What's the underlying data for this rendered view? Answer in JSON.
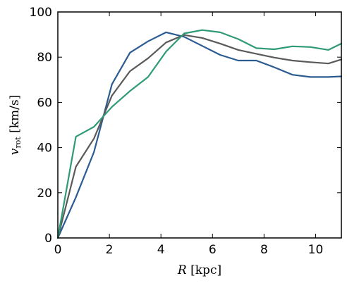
{
  "chart_data": {
    "type": "line",
    "xlabel": "R [kpc]",
    "xlabel_italic": "R",
    "xlabel_rest": " [kpc]",
    "ylabel": "v_rot [km/s]",
    "ylabel_main": "v",
    "ylabel_sub": "rot",
    "ylabel_unit": " [km/s]",
    "xlim": [
      0,
      11
    ],
    "ylim": [
      0,
      100
    ],
    "xticks": [
      0,
      2,
      4,
      6,
      8,
      10
    ],
    "yticks": [
      0,
      20,
      40,
      60,
      80,
      100
    ],
    "grid": false,
    "series": [
      {
        "color": "#2b5b91",
        "x": [
          0,
          0.7,
          1.4,
          2.1,
          2.8,
          3.5,
          4.2,
          4.9,
          5.6,
          6.3,
          7.0,
          7.7,
          8.4,
          9.1,
          9.8,
          10.5,
          11.0
        ],
        "y": [
          0,
          18,
          38,
          68,
          82,
          87,
          91,
          89,
          85,
          81,
          78.5,
          78.5,
          75.5,
          72.2,
          71.2,
          71.2,
          71.5
        ]
      },
      {
        "color": "#5a5a5a",
        "x": [
          0,
          0.7,
          1.4,
          2.1,
          2.8,
          3.5,
          4.2,
          4.9,
          5.6,
          6.3,
          7.0,
          7.7,
          8.4,
          9.1,
          9.8,
          10.5,
          11.0
        ],
        "y": [
          0,
          31.5,
          44,
          63,
          73.8,
          79.5,
          86.5,
          89.8,
          88.5,
          86,
          83.2,
          81.5,
          79.8,
          78.5,
          77.8,
          77.2,
          79
        ]
      },
      {
        "color": "#2e9a76",
        "x": [
          0,
          0.7,
          1.4,
          2.1,
          2.8,
          3.5,
          4.2,
          4.9,
          5.6,
          6.3,
          7.0,
          7.7,
          8.4,
          9.1,
          9.8,
          10.5,
          11.0
        ],
        "y": [
          0,
          44.8,
          49.2,
          58,
          65,
          71.2,
          82.5,
          90.5,
          92,
          91,
          88,
          84,
          83.5,
          84.8,
          84.5,
          83.2,
          86
        ]
      }
    ]
  }
}
